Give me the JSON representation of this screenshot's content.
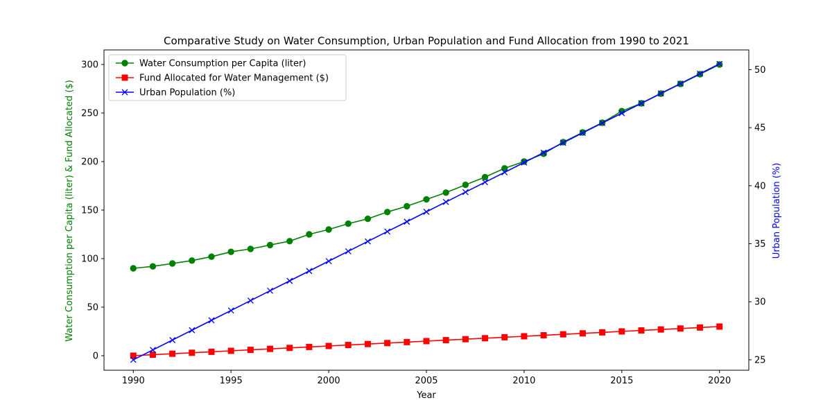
{
  "chart_data": {
    "type": "line",
    "title": "Comparative Study on Water Consumption, Urban Population and Fund Allocation from 1990 to 2021",
    "xlabel": "Year",
    "ylabel_left": "Water Consumption per Capita (liter) & Fund Allocated ($)",
    "ylabel_right": "Urban Population (%)",
    "ylabel_left_color": "#008000",
    "ylabel_right_color": "#0000ff",
    "xlim": [
      1988.5,
      2021.5
    ],
    "ylim_left": [
      -15,
      315
    ],
    "ylim_right": [
      24.1,
      51.7
    ],
    "xticks": [
      1990,
      1995,
      2000,
      2005,
      2010,
      2015,
      2020
    ],
    "yticks_left": [
      0,
      50,
      100,
      150,
      200,
      250,
      300
    ],
    "yticks_right": [
      25,
      30,
      35,
      40,
      45,
      50
    ],
    "grid": false,
    "legend_position": "top-left",
    "x": [
      1990,
      1991,
      1992,
      1993,
      1994,
      1995,
      1996,
      1997,
      1998,
      1999,
      2000,
      2001,
      2002,
      2003,
      2004,
      2005,
      2006,
      2007,
      2008,
      2009,
      2010,
      2011,
      2012,
      2013,
      2014,
      2015,
      2016,
      2017,
      2018,
      2019,
      2020
    ],
    "series": [
      {
        "name": "Water Consumption per Capita (liter)",
        "axis": "left",
        "color": "#008000",
        "marker": "circle",
        "values": [
          90,
          92,
          95,
          98,
          102,
          107,
          110,
          114,
          118,
          125,
          130,
          136,
          141,
          148,
          154,
          161,
          168,
          176,
          184,
          193,
          200,
          208,
          220,
          230,
          240,
          252,
          260,
          270,
          280,
          290,
          300
        ]
      },
      {
        "name": "Fund Allocated for Water Management ($)",
        "axis": "left",
        "color": "#ff0000",
        "marker": "square",
        "values": [
          0,
          1,
          2,
          3,
          4,
          5,
          6,
          7,
          8,
          9,
          10,
          11,
          12,
          13,
          14,
          15,
          16,
          17,
          18,
          19,
          20,
          21,
          22,
          23,
          24,
          25,
          26,
          27,
          28,
          29,
          30
        ]
      },
      {
        "name": "Urban Population (%)",
        "axis": "right",
        "color": "#0000ff",
        "marker": "x",
        "values": [
          25,
          25.85,
          26.7,
          27.55,
          28.4,
          29.25,
          30.1,
          30.95,
          31.8,
          32.65,
          33.5,
          34.35,
          35.2,
          36.05,
          36.9,
          37.75,
          38.6,
          39.45,
          40.3,
          41.15,
          42,
          42.85,
          43.7,
          44.55,
          45.4,
          46.25,
          47.1,
          47.95,
          48.8,
          49.65,
          50.5
        ]
      }
    ]
  }
}
